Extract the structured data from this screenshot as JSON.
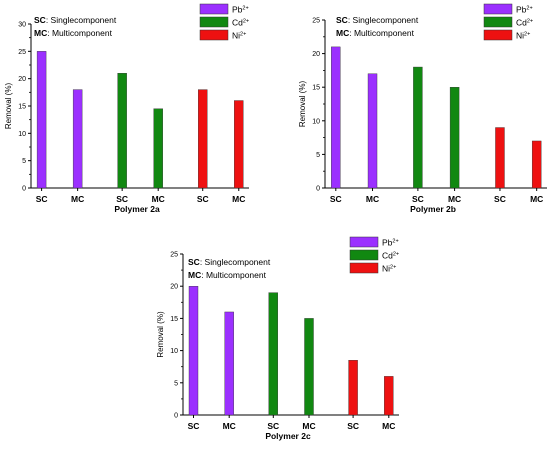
{
  "figure": {
    "note_lines": [
      {
        "abbr": "SC",
        "text": ": Singlecomponent"
      },
      {
        "abbr": "MC",
        "text": ": Multicomponent"
      }
    ]
  },
  "chart_data": [
    {
      "type": "bar",
      "title": "",
      "xlabel": "Polymer 2a",
      "ylabel": "Removal (%)",
      "ylim": [
        0,
        30
      ],
      "yticks": [
        "0",
        "5",
        "10",
        "15",
        "20",
        "25",
        "30"
      ],
      "legend_position": "top-right",
      "bars": [
        {
          "label": "SC",
          "series": "Pb",
          "value": 25
        },
        {
          "label": "MC",
          "series": "Pb",
          "value": 18
        },
        {
          "label": "SC",
          "series": "Cd",
          "value": 21
        },
        {
          "label": "MC",
          "series": "Cd",
          "value": 14.5
        },
        {
          "label": "SC",
          "series": "Ni",
          "value": 18
        },
        {
          "label": "MC",
          "series": "Ni",
          "value": 16
        }
      ]
    },
    {
      "type": "bar",
      "title": "",
      "xlabel": "Polymer 2b",
      "ylabel": "Removal (%)",
      "ylim": [
        0,
        25
      ],
      "yticks": [
        "0",
        "5",
        "10",
        "15",
        "20",
        "25"
      ],
      "legend_position": "top-right",
      "bars": [
        {
          "label": "SC",
          "series": "Pb",
          "value": 21
        },
        {
          "label": "MC",
          "series": "Pb",
          "value": 17
        },
        {
          "label": "SC",
          "series": "Cd",
          "value": 18
        },
        {
          "label": "MC",
          "series": "Cd",
          "value": 15
        },
        {
          "label": "SC",
          "series": "Ni",
          "value": 9
        },
        {
          "label": "MC",
          "series": "Ni",
          "value": 7
        }
      ]
    },
    {
      "type": "bar",
      "title": "",
      "xlabel": "Polymer 2c",
      "ylabel": "Removal (%)",
      "ylim": [
        0,
        25
      ],
      "yticks": [
        "0",
        "5",
        "10",
        "15",
        "20",
        "25"
      ],
      "legend_position": "top-right",
      "bars": [
        {
          "label": "SC",
          "series": "Pb",
          "value": 20
        },
        {
          "label": "MC",
          "series": "Pb",
          "value": 16
        },
        {
          "label": "SC",
          "series": "Cd",
          "value": 19
        },
        {
          "label": "MC",
          "series": "Cd",
          "value": 15
        },
        {
          "label": "SC",
          "series": "Ni",
          "value": 8.5
        },
        {
          "label": "MC",
          "series": "Ni",
          "value": 6
        }
      ]
    }
  ],
  "series": [
    {
      "key": "Pb",
      "symbol": "Pb",
      "charge": "2+",
      "color": "#9b30ff"
    },
    {
      "key": "Cd",
      "symbol": "Cd",
      "charge": "2+",
      "color": "#118811"
    },
    {
      "key": "Ni",
      "symbol": "Ni",
      "charge": "2+",
      "color": "#ee1111"
    }
  ]
}
